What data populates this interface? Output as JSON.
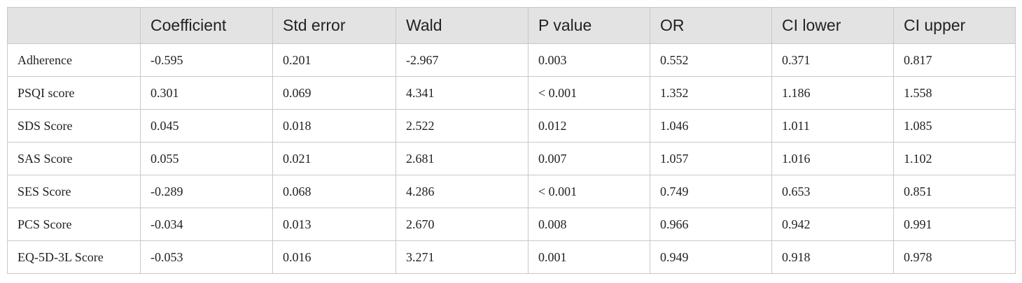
{
  "table": {
    "columns": [
      "Coefficient",
      "Std error",
      "Wald",
      "P value",
      "OR",
      "CI lower",
      "CI upper"
    ],
    "rows": [
      [
        "Adherence",
        "-0.595",
        "0.201",
        "-2.967",
        "0.003",
        "0.552",
        "0.371",
        "0.817"
      ],
      [
        "PSQI score",
        "0.301",
        "0.069",
        "4.341",
        "< 0.001",
        "1.352",
        "1.186",
        "1.558"
      ],
      [
        "SDS Score",
        "0.045",
        "0.018",
        "2.522",
        "0.012",
        "1.046",
        "1.011",
        "1.085"
      ],
      [
        "SAS Score",
        "0.055",
        "0.021",
        "2.681",
        "0.007",
        "1.057",
        "1.016",
        "1.102"
      ],
      [
        "SES Score",
        "-0.289",
        "0.068",
        "4.286",
        "< 0.001",
        "0.749",
        "0.653",
        "0.851"
      ],
      [
        "PCS Score",
        "-0.034",
        "0.013",
        "2.670",
        "0.008",
        "0.966",
        "0.942",
        "0.991"
      ],
      [
        "EQ-5D-3L Score",
        "-0.053",
        "0.016",
        "3.271",
        "0.001",
        "0.949",
        "0.918",
        "0.978"
      ]
    ]
  }
}
